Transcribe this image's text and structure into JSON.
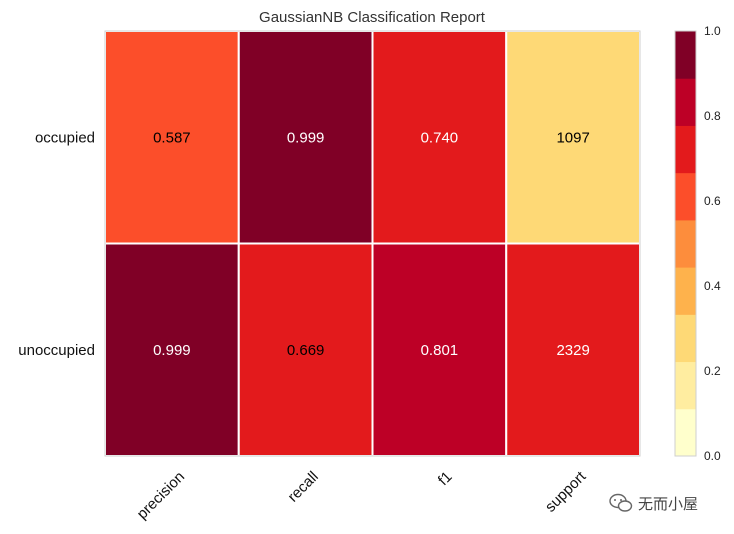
{
  "chart_data": {
    "type": "heatmap",
    "title": "GaussianNB Classification Report",
    "rows": [
      "occupied",
      "unoccupied"
    ],
    "columns": [
      "precision",
      "recall",
      "f1",
      "support"
    ],
    "cells": [
      [
        {
          "label": "0.587",
          "score": 0.587
        },
        {
          "label": "0.999",
          "score": 0.999
        },
        {
          "label": "0.740",
          "score": 0.74
        },
        {
          "label": "1097",
          "score": 0.32
        }
      ],
      [
        {
          "label": "0.999",
          "score": 0.999
        },
        {
          "label": "0.669",
          "score": 0.669
        },
        {
          "label": "0.801",
          "score": 0.801
        },
        {
          "label": "2329",
          "score": 0.72
        }
      ]
    ],
    "colorbar": {
      "range": [
        0,
        1
      ],
      "ticks": [
        "0.0",
        "0.2",
        "0.4",
        "0.6",
        "0.8",
        "1.0"
      ],
      "colors": [
        "#ffffcc",
        "#ffeda0",
        "#fed976",
        "#feb24c",
        "#fd8d3c",
        "#fc4e2a",
        "#e31a1c",
        "#bd0026",
        "#800026"
      ]
    }
  },
  "watermark": "无而小屋"
}
